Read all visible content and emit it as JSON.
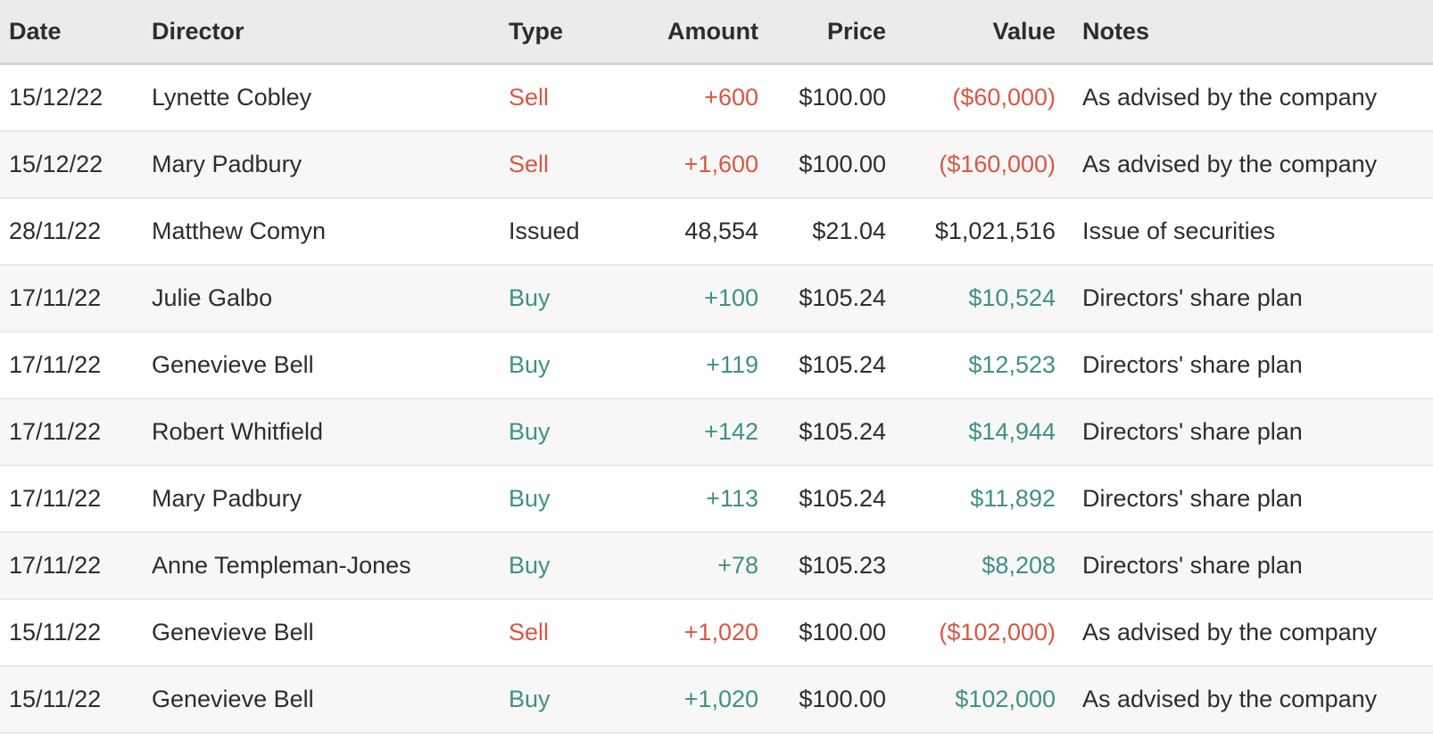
{
  "colors": {
    "sell_red": "#d85744",
    "buy_teal": "#3f9087",
    "text": "#2d2d2d",
    "header_background": "#ebebeb",
    "header_border": "#d2d2d2",
    "row_alternate_background": "#f7f7f7",
    "row_divider": "#e9e9e9",
    "page_background": "#ffffff"
  },
  "table": {
    "columns": [
      {
        "key": "date",
        "label": "Date",
        "align": "left"
      },
      {
        "key": "director",
        "label": "Director",
        "align": "left"
      },
      {
        "key": "type",
        "label": "Type",
        "align": "left"
      },
      {
        "key": "amount",
        "label": "Amount",
        "align": "right"
      },
      {
        "key": "price",
        "label": "Price",
        "align": "right"
      },
      {
        "key": "value",
        "label": "Value",
        "align": "right"
      },
      {
        "key": "notes",
        "label": "Notes",
        "align": "left"
      }
    ],
    "rows": [
      {
        "date": "15/12/22",
        "director": "Lynette Cobley",
        "type": "Sell",
        "amount": "+600",
        "price": "$100.00",
        "value": "($60,000)",
        "notes": "As advised by the company",
        "sentiment": "sell"
      },
      {
        "date": "15/12/22",
        "director": "Mary Padbury",
        "type": "Sell",
        "amount": "+1,600",
        "price": "$100.00",
        "value": "($160,000)",
        "notes": "As advised by the company",
        "sentiment": "sell"
      },
      {
        "date": "28/11/22",
        "director": "Matthew Comyn",
        "type": "Issued",
        "amount": "48,554",
        "price": "$21.04",
        "value": "$1,021,516",
        "notes": "Issue of securities",
        "sentiment": "neutral"
      },
      {
        "date": "17/11/22",
        "director": "Julie Galbo",
        "type": "Buy",
        "amount": "+100",
        "price": "$105.24",
        "value": "$10,524",
        "notes": "Directors' share plan",
        "sentiment": "buy"
      },
      {
        "date": "17/11/22",
        "director": "Genevieve Bell",
        "type": "Buy",
        "amount": "+119",
        "price": "$105.24",
        "value": "$12,523",
        "notes": "Directors' share plan",
        "sentiment": "buy"
      },
      {
        "date": "17/11/22",
        "director": "Robert Whitfield",
        "type": "Buy",
        "amount": "+142",
        "price": "$105.24",
        "value": "$14,944",
        "notes": "Directors' share plan",
        "sentiment": "buy"
      },
      {
        "date": "17/11/22",
        "director": "Mary Padbury",
        "type": "Buy",
        "amount": "+113",
        "price": "$105.24",
        "value": "$11,892",
        "notes": "Directors' share plan",
        "sentiment": "buy"
      },
      {
        "date": "17/11/22",
        "director": "Anne Templeman-Jones",
        "type": "Buy",
        "amount": "+78",
        "price": "$105.23",
        "value": "$8,208",
        "notes": "Directors' share plan",
        "sentiment": "buy"
      },
      {
        "date": "15/11/22",
        "director": "Genevieve Bell",
        "type": "Sell",
        "amount": "+1,020",
        "price": "$100.00",
        "value": "($102,000)",
        "notes": "As advised by the company",
        "sentiment": "sell"
      },
      {
        "date": "15/11/22",
        "director": "Genevieve Bell",
        "type": "Buy",
        "amount": "+1,020",
        "price": "$100.00",
        "value": "$102,000",
        "notes": "As advised by the company",
        "sentiment": "buy"
      }
    ]
  }
}
